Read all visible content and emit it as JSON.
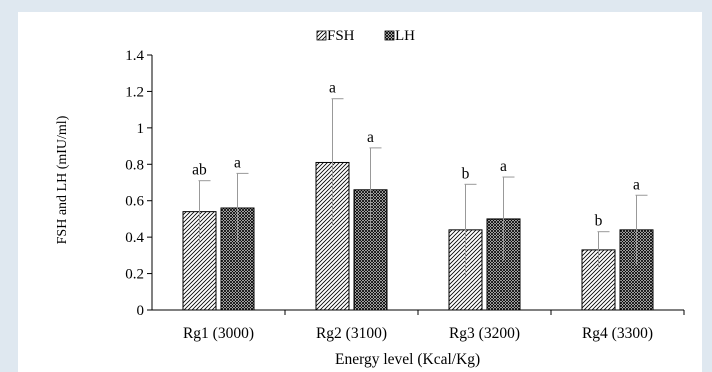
{
  "chart_data": {
    "type": "bar",
    "categories": [
      "Rg1 (3000)",
      "Rg2 (3100)",
      "Rg3 (3200)",
      "Rg4 (3300)"
    ],
    "series": [
      {
        "name": "FSH",
        "values": [
          0.54,
          0.81,
          0.44,
          0.33
        ],
        "errors": [
          0.17,
          0.35,
          0.25,
          0.1
        ],
        "letters": [
          "ab",
          "a",
          "b",
          "b"
        ],
        "pattern": "diagonal-hatch"
      },
      {
        "name": "LH",
        "values": [
          0.56,
          0.66,
          0.5,
          0.44
        ],
        "errors": [
          0.19,
          0.23,
          0.23,
          0.19
        ],
        "letters": [
          "a",
          "a",
          "a",
          "a"
        ],
        "pattern": "crosshatch"
      }
    ],
    "xlabel": "Energy level (Kcal/Kg)",
    "ylabel": "FSH and LH (mIU/ml)",
    "ylim": [
      0,
      1.4
    ],
    "yticks": [
      "0",
      "0.2",
      "0.4",
      "0.6",
      "0.8",
      "1",
      "1.2",
      "1.4"
    ],
    "legend_position": "top-center",
    "grid": false
  }
}
